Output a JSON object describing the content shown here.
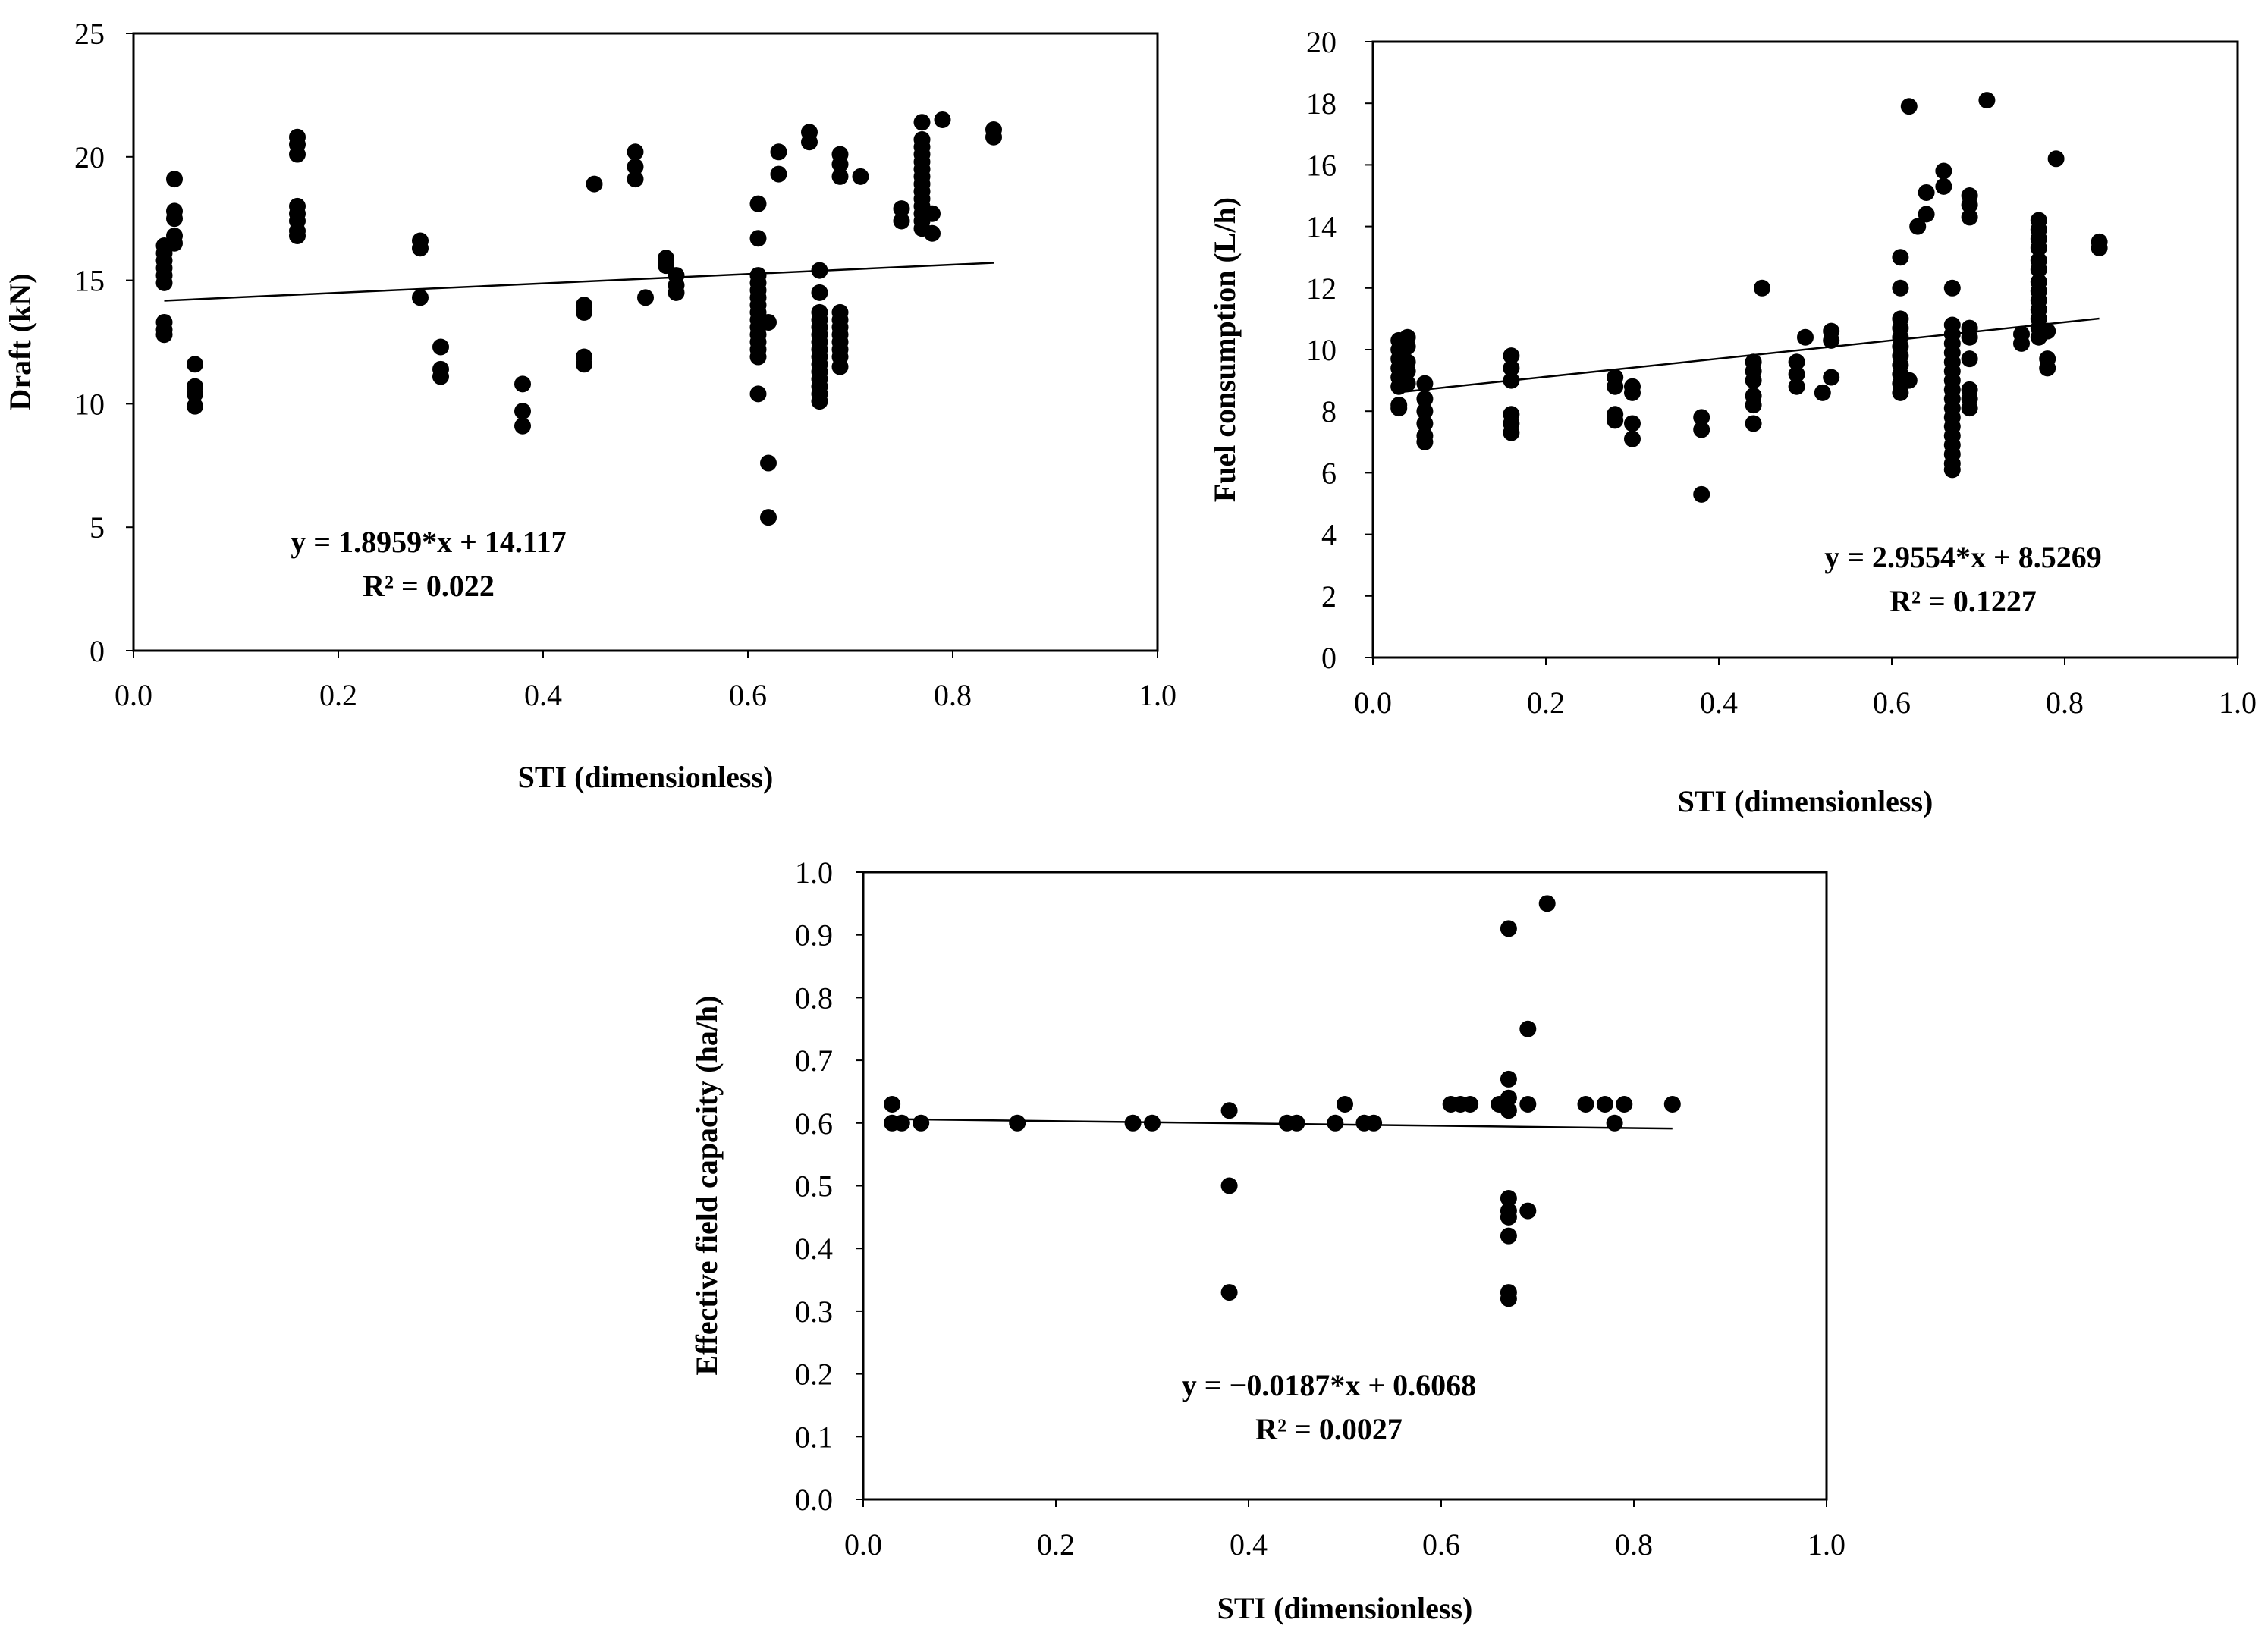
{
  "chart_data": [
    {
      "type": "scatter",
      "id": "draft",
      "xlabel": "STI (dimensionless)",
      "ylabel": "Draft (kN)",
      "xlim": [
        0,
        1
      ],
      "ylim": [
        0,
        25
      ],
      "xticks": [
        "0.0",
        "0.2",
        "0.4",
        "0.6",
        "0.8",
        "1.0"
      ],
      "yticks": [
        "0",
        "5",
        "10",
        "15",
        "20",
        "25"
      ],
      "equation": "y = 1.8959*x + 14.117",
      "r2": "R² = 0.022",
      "trend": {
        "slope": 1.8959,
        "intercept": 14.117,
        "x_range": [
          0.03,
          0.84
        ]
      },
      "points": [
        [
          0.03,
          16.4
        ],
        [
          0.03,
          16.1
        ],
        [
          0.03,
          15.8
        ],
        [
          0.03,
          15.5
        ],
        [
          0.03,
          15.2
        ],
        [
          0.03,
          14.9
        ],
        [
          0.03,
          13.3
        ],
        [
          0.03,
          13.0
        ],
        [
          0.03,
          12.8
        ],
        [
          0.04,
          19.1
        ],
        [
          0.04,
          17.8
        ],
        [
          0.04,
          17.5
        ],
        [
          0.04,
          16.8
        ],
        [
          0.04,
          16.5
        ],
        [
          0.06,
          11.6
        ],
        [
          0.06,
          10.7
        ],
        [
          0.06,
          10.4
        ],
        [
          0.06,
          9.9
        ],
        [
          0.16,
          20.8
        ],
        [
          0.16,
          20.5
        ],
        [
          0.16,
          20.1
        ],
        [
          0.16,
          18.0
        ],
        [
          0.16,
          17.7
        ],
        [
          0.16,
          17.4
        ],
        [
          0.16,
          17.0
        ],
        [
          0.16,
          16.8
        ],
        [
          0.28,
          16.6
        ],
        [
          0.28,
          16.3
        ],
        [
          0.28,
          14.3
        ],
        [
          0.3,
          12.3
        ],
        [
          0.3,
          11.4
        ],
        [
          0.3,
          11.1
        ],
        [
          0.38,
          10.8
        ],
        [
          0.38,
          9.7
        ],
        [
          0.38,
          9.1
        ],
        [
          0.44,
          14.0
        ],
        [
          0.44,
          13.7
        ],
        [
          0.44,
          11.9
        ],
        [
          0.44,
          11.6
        ],
        [
          0.45,
          18.9
        ],
        [
          0.49,
          20.2
        ],
        [
          0.49,
          19.6
        ],
        [
          0.49,
          19.1
        ],
        [
          0.5,
          14.3
        ],
        [
          0.52,
          15.9
        ],
        [
          0.52,
          15.6
        ],
        [
          0.53,
          15.2
        ],
        [
          0.53,
          14.8
        ],
        [
          0.53,
          14.5
        ],
        [
          0.61,
          18.1
        ],
        [
          0.61,
          16.7
        ],
        [
          0.61,
          15.2
        ],
        [
          0.61,
          14.9
        ],
        [
          0.61,
          14.6
        ],
        [
          0.61,
          14.3
        ],
        [
          0.61,
          14.0
        ],
        [
          0.61,
          13.7
        ],
        [
          0.61,
          13.4
        ],
        [
          0.61,
          13.1
        ],
        [
          0.61,
          12.8
        ],
        [
          0.61,
          12.5
        ],
        [
          0.61,
          12.2
        ],
        [
          0.61,
          11.9
        ],
        [
          0.61,
          10.4
        ],
        [
          0.62,
          13.3
        ],
        [
          0.62,
          7.6
        ],
        [
          0.62,
          5.4
        ],
        [
          0.63,
          20.2
        ],
        [
          0.63,
          19.3
        ],
        [
          0.66,
          21.0
        ],
        [
          0.66,
          20.6
        ],
        [
          0.67,
          15.4
        ],
        [
          0.67,
          14.5
        ],
        [
          0.67,
          13.7
        ],
        [
          0.67,
          13.4
        ],
        [
          0.67,
          13.1
        ],
        [
          0.67,
          12.8
        ],
        [
          0.67,
          12.5
        ],
        [
          0.67,
          12.2
        ],
        [
          0.67,
          11.9
        ],
        [
          0.67,
          11.6
        ],
        [
          0.67,
          11.3
        ],
        [
          0.67,
          11.0
        ],
        [
          0.67,
          10.7
        ],
        [
          0.67,
          10.4
        ],
        [
          0.67,
          10.1
        ],
        [
          0.69,
          20.1
        ],
        [
          0.69,
          19.7
        ],
        [
          0.69,
          19.2
        ],
        [
          0.69,
          13.7
        ],
        [
          0.69,
          13.4
        ],
        [
          0.69,
          13.1
        ],
        [
          0.69,
          12.8
        ],
        [
          0.69,
          12.5
        ],
        [
          0.69,
          12.2
        ],
        [
          0.69,
          11.9
        ],
        [
          0.69,
          11.5
        ],
        [
          0.71,
          19.2
        ],
        [
          0.75,
          17.9
        ],
        [
          0.75,
          17.4
        ],
        [
          0.77,
          21.4
        ],
        [
          0.77,
          20.7
        ],
        [
          0.77,
          20.4
        ],
        [
          0.77,
          20.1
        ],
        [
          0.77,
          19.8
        ],
        [
          0.77,
          19.5
        ],
        [
          0.77,
          19.2
        ],
        [
          0.77,
          18.9
        ],
        [
          0.77,
          18.6
        ],
        [
          0.77,
          18.3
        ],
        [
          0.77,
          18.0
        ],
        [
          0.77,
          17.7
        ],
        [
          0.77,
          17.4
        ],
        [
          0.77,
          17.1
        ],
        [
          0.78,
          17.7
        ],
        [
          0.78,
          16.9
        ],
        [
          0.79,
          21.5
        ],
        [
          0.84,
          21.1
        ],
        [
          0.84,
          20.8
        ]
      ]
    },
    {
      "type": "scatter",
      "id": "fuel",
      "xlabel": "STI (dimensionless)",
      "ylabel": "Fuel consumption  (L/h)",
      "xlim": [
        0,
        1
      ],
      "ylim": [
        0,
        20
      ],
      "xticks": [
        "0.0",
        "0.2",
        "0.4",
        "0.6",
        "0.8",
        "1.0"
      ],
      "yticks": [
        "0",
        "2",
        "4",
        "6",
        "8",
        "10",
        "12",
        "14",
        "16",
        "18",
        "20"
      ],
      "equation": "y = 2.9554*x + 8.5269",
      "r2": "R² = 0.1227",
      "trend": {
        "slope": 2.9554,
        "intercept": 8.5269,
        "x_range": [
          0.03,
          0.84
        ]
      },
      "points": [
        [
          0.03,
          10.3
        ],
        [
          0.03,
          10.0
        ],
        [
          0.03,
          9.7
        ],
        [
          0.03,
          9.4
        ],
        [
          0.03,
          9.1
        ],
        [
          0.03,
          8.8
        ],
        [
          0.03,
          8.2
        ],
        [
          0.03,
          8.1
        ],
        [
          0.04,
          10.4
        ],
        [
          0.04,
          10.1
        ],
        [
          0.04,
          9.6
        ],
        [
          0.04,
          9.3
        ],
        [
          0.04,
          8.9
        ],
        [
          0.06,
          8.9
        ],
        [
          0.06,
          8.4
        ],
        [
          0.06,
          8.0
        ],
        [
          0.06,
          7.6
        ],
        [
          0.06,
          7.2
        ],
        [
          0.06,
          7.0
        ],
        [
          0.16,
          9.8
        ],
        [
          0.16,
          9.4
        ],
        [
          0.16,
          9.0
        ],
        [
          0.16,
          7.9
        ],
        [
          0.16,
          7.6
        ],
        [
          0.16,
          7.3
        ],
        [
          0.28,
          9.1
        ],
        [
          0.28,
          8.8
        ],
        [
          0.28,
          7.9
        ],
        [
          0.28,
          7.7
        ],
        [
          0.3,
          8.8
        ],
        [
          0.3,
          8.6
        ],
        [
          0.3,
          7.6
        ],
        [
          0.3,
          7.1
        ],
        [
          0.38,
          7.8
        ],
        [
          0.38,
          7.4
        ],
        [
          0.38,
          5.3
        ],
        [
          0.44,
          9.6
        ],
        [
          0.44,
          9.3
        ],
        [
          0.44,
          9.0
        ],
        [
          0.44,
          8.5
        ],
        [
          0.44,
          8.2
        ],
        [
          0.44,
          7.6
        ],
        [
          0.45,
          12.0
        ],
        [
          0.49,
          9.6
        ],
        [
          0.49,
          9.2
        ],
        [
          0.49,
          8.8
        ],
        [
          0.5,
          10.4
        ],
        [
          0.52,
          8.6
        ],
        [
          0.53,
          10.6
        ],
        [
          0.53,
          10.3
        ],
        [
          0.53,
          9.1
        ],
        [
          0.61,
          13.0
        ],
        [
          0.61,
          12.0
        ],
        [
          0.61,
          11.0
        ],
        [
          0.61,
          10.7
        ],
        [
          0.61,
          10.4
        ],
        [
          0.61,
          10.1
        ],
        [
          0.61,
          9.8
        ],
        [
          0.61,
          9.5
        ],
        [
          0.61,
          9.2
        ],
        [
          0.61,
          8.9
        ],
        [
          0.61,
          8.6
        ],
        [
          0.62,
          17.9
        ],
        [
          0.62,
          9.0
        ],
        [
          0.63,
          14.0
        ],
        [
          0.64,
          15.1
        ],
        [
          0.64,
          14.4
        ],
        [
          0.66,
          15.8
        ],
        [
          0.66,
          15.3
        ],
        [
          0.67,
          12.0
        ],
        [
          0.67,
          10.8
        ],
        [
          0.67,
          10.5
        ],
        [
          0.67,
          10.2
        ],
        [
          0.67,
          9.9
        ],
        [
          0.67,
          9.6
        ],
        [
          0.67,
          9.3
        ],
        [
          0.67,
          9.0
        ],
        [
          0.67,
          8.7
        ],
        [
          0.67,
          8.4
        ],
        [
          0.67,
          8.1
        ],
        [
          0.67,
          7.8
        ],
        [
          0.67,
          7.5
        ],
        [
          0.67,
          7.2
        ],
        [
          0.67,
          6.9
        ],
        [
          0.67,
          6.6
        ],
        [
          0.67,
          6.3
        ],
        [
          0.67,
          6.1
        ],
        [
          0.69,
          15.0
        ],
        [
          0.69,
          14.7
        ],
        [
          0.69,
          14.3
        ],
        [
          0.69,
          10.7
        ],
        [
          0.69,
          10.4
        ],
        [
          0.69,
          9.7
        ],
        [
          0.69,
          8.7
        ],
        [
          0.69,
          8.4
        ],
        [
          0.69,
          8.1
        ],
        [
          0.71,
          18.1
        ],
        [
          0.75,
          10.5
        ],
        [
          0.75,
          10.2
        ],
        [
          0.77,
          14.2
        ],
        [
          0.77,
          13.9
        ],
        [
          0.77,
          13.6
        ],
        [
          0.77,
          13.3
        ],
        [
          0.77,
          12.9
        ],
        [
          0.77,
          12.6
        ],
        [
          0.77,
          12.2
        ],
        [
          0.77,
          11.9
        ],
        [
          0.77,
          11.6
        ],
        [
          0.77,
          11.3
        ],
        [
          0.77,
          11.0
        ],
        [
          0.77,
          10.7
        ],
        [
          0.77,
          10.4
        ],
        [
          0.78,
          10.6
        ],
        [
          0.78,
          9.7
        ],
        [
          0.78,
          9.4
        ],
        [
          0.79,
          16.2
        ],
        [
          0.84,
          13.5
        ],
        [
          0.84,
          13.3
        ]
      ]
    },
    {
      "type": "scatter",
      "id": "efc",
      "xlabel": "STI (dimensionless)",
      "ylabel": "Effective field capacity (ha/h)",
      "xlim": [
        0,
        1
      ],
      "ylim": [
        0,
        1
      ],
      "xticks": [
        "0.0",
        "0.2",
        "0.4",
        "0.6",
        "0.8",
        "1.0"
      ],
      "yticks": [
        "0.0",
        "0.1",
        "0.2",
        "0.3",
        "0.4",
        "0.5",
        "0.6",
        "0.7",
        "0.8",
        "0.9",
        "1.0"
      ],
      "equation": "y = −0.0187*x + 0.6068",
      "r2": "R² = 0.0027",
      "trend": {
        "slope": -0.0187,
        "intercept": 0.6068,
        "x_range": [
          0.03,
          0.84
        ]
      },
      "points": [
        [
          0.03,
          0.63
        ],
        [
          0.03,
          0.6
        ],
        [
          0.04,
          0.6
        ],
        [
          0.06,
          0.6
        ],
        [
          0.16,
          0.6
        ],
        [
          0.28,
          0.6
        ],
        [
          0.3,
          0.6
        ],
        [
          0.38,
          0.62
        ],
        [
          0.38,
          0.5
        ],
        [
          0.38,
          0.33
        ],
        [
          0.44,
          0.6
        ],
        [
          0.45,
          0.6
        ],
        [
          0.49,
          0.6
        ],
        [
          0.5,
          0.63
        ],
        [
          0.52,
          0.6
        ],
        [
          0.53,
          0.6
        ],
        [
          0.61,
          0.63
        ],
        [
          0.62,
          0.63
        ],
        [
          0.63,
          0.63
        ],
        [
          0.66,
          0.63
        ],
        [
          0.67,
          0.91
        ],
        [
          0.67,
          0.67
        ],
        [
          0.67,
          0.64
        ],
        [
          0.67,
          0.62
        ],
        [
          0.67,
          0.48
        ],
        [
          0.67,
          0.46
        ],
        [
          0.67,
          0.45
        ],
        [
          0.67,
          0.42
        ],
        [
          0.67,
          0.33
        ],
        [
          0.67,
          0.32
        ],
        [
          0.69,
          0.75
        ],
        [
          0.69,
          0.63
        ],
        [
          0.69,
          0.46
        ],
        [
          0.71,
          0.95
        ],
        [
          0.75,
          0.63
        ],
        [
          0.77,
          0.63
        ],
        [
          0.78,
          0.6
        ],
        [
          0.79,
          0.63
        ],
        [
          0.84,
          0.63
        ]
      ]
    }
  ]
}
